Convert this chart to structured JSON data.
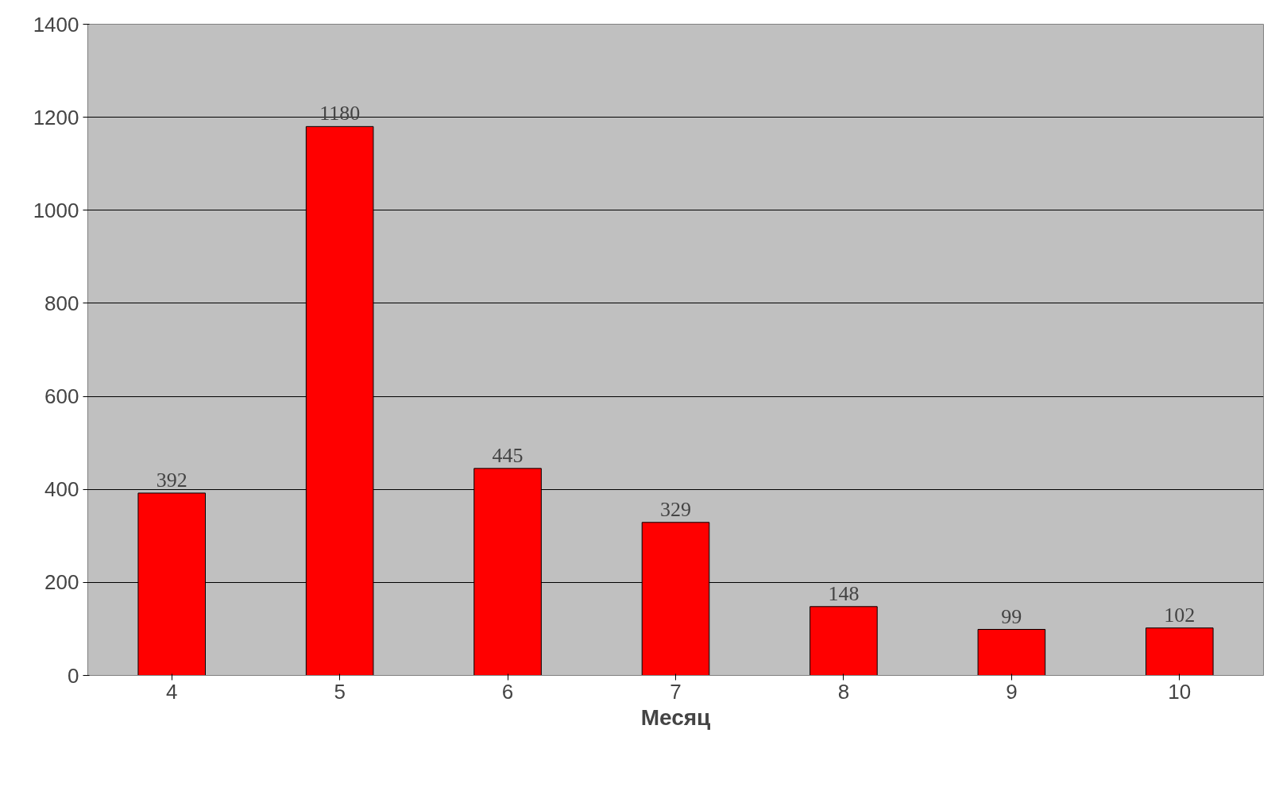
{
  "chart_data": {
    "type": "bar",
    "xlabel": "Месяц",
    "categories": [
      "4",
      "5",
      "6",
      "7",
      "8",
      "9",
      "10"
    ],
    "values": [
      392,
      1180,
      445,
      329,
      148,
      99,
      102
    ],
    "color": "#ff0000",
    "ylim": [
      0,
      1400
    ],
    "yticks": [
      0,
      200,
      400,
      600,
      800,
      1000,
      1200,
      1400
    ],
    "grid": "y",
    "data_labels": true
  }
}
